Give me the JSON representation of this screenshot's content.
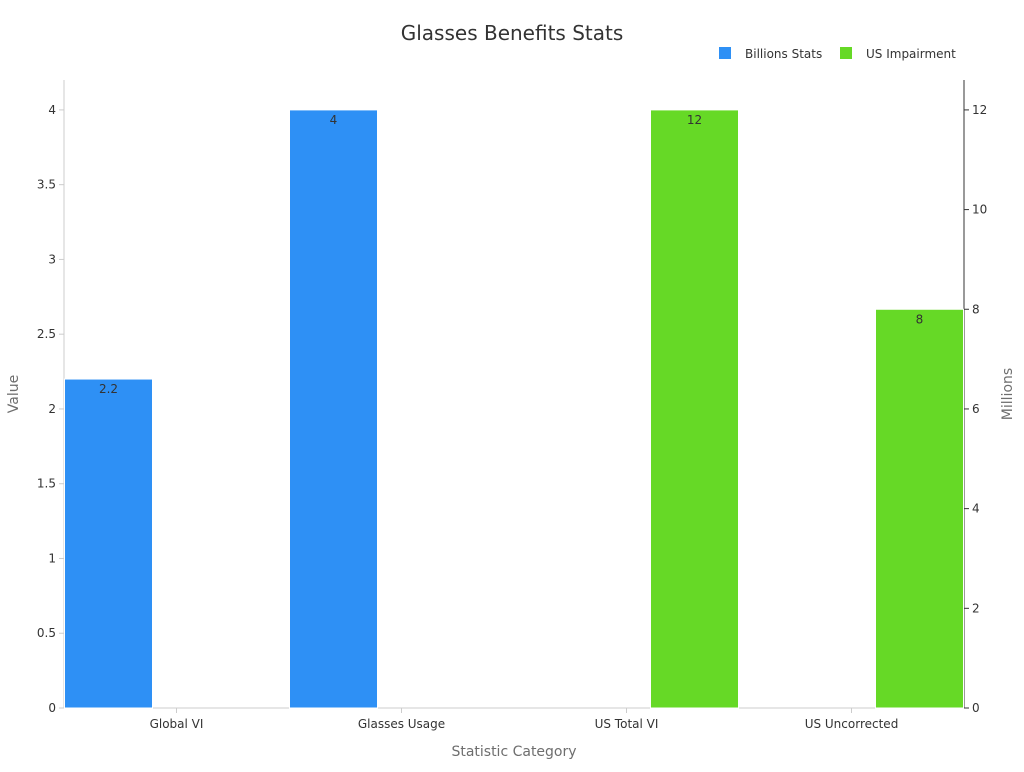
{
  "chart_data": {
    "type": "bar",
    "title": "Glasses Benefits Stats",
    "xlabel": "Statistic Category",
    "ylabel": "Value",
    "y2label": "Millions",
    "categories": [
      "Global VI",
      "Glasses Usage",
      "US Total VI",
      "US Uncorrected"
    ],
    "series": [
      {
        "name": "Billions Stats",
        "color": "#2e90f5",
        "axis": "left",
        "values": [
          2.2,
          4,
          null,
          null
        ]
      },
      {
        "name": "US Impairment",
        "color": "#66d926",
        "axis": "right",
        "values": [
          null,
          null,
          12,
          8
        ]
      }
    ],
    "ylim": [
      0,
      4.2
    ],
    "yticks": [
      "0",
      "0.5",
      "1",
      "1.5",
      "2",
      "2.5",
      "3",
      "3.5",
      "4"
    ],
    "ytick_values": [
      0,
      0.5,
      1,
      1.5,
      2,
      2.5,
      3,
      3.5,
      4
    ],
    "y2lim": [
      0,
      12.6
    ],
    "y2ticks": [
      "0",
      "2",
      "4",
      "6",
      "8",
      "10",
      "12"
    ],
    "y2tick_values": [
      0,
      2,
      4,
      6,
      8,
      10,
      12
    ],
    "data_labels": [
      "2.2",
      "4",
      "12",
      "8"
    ],
    "legend_position": "top-right",
    "grid": false
  }
}
